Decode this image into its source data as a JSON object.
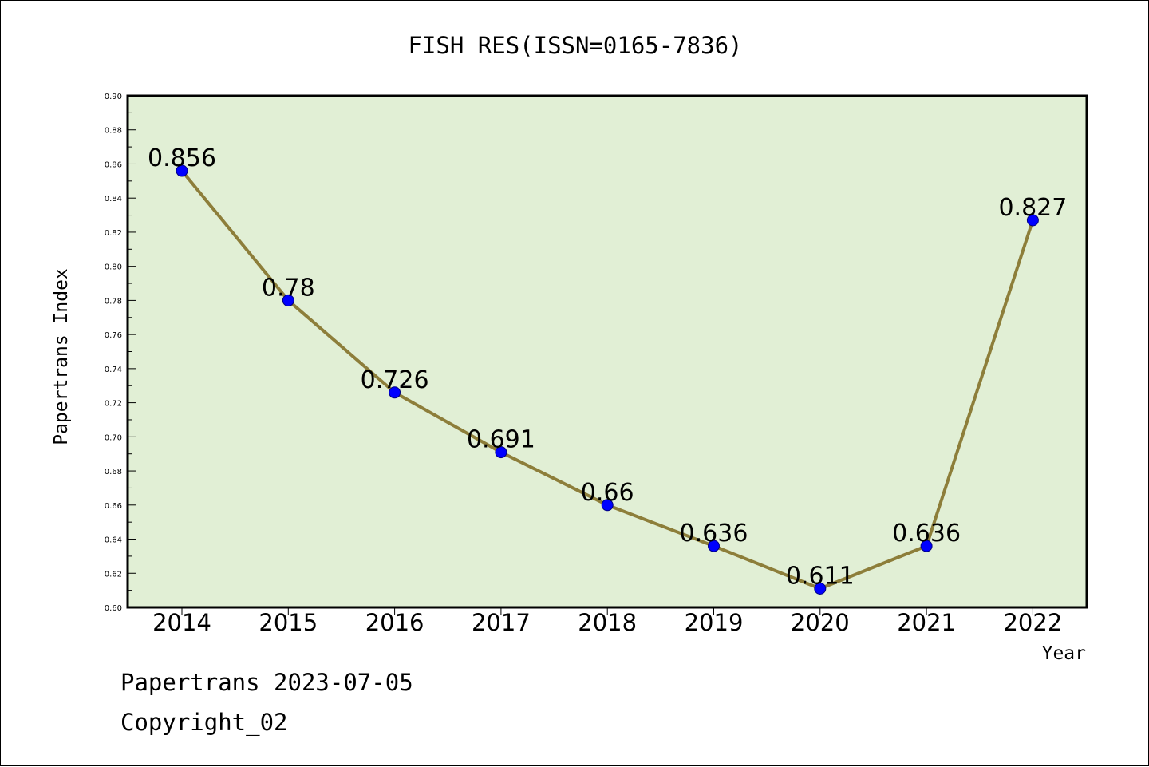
{
  "colors": {
    "plot_background": "#e1efd5",
    "line": "#8d7e3a",
    "marker": "#0000ff",
    "frame": "#000000"
  },
  "chart_data": {
    "type": "line",
    "title": "FISH RES(ISSN=0165-7836)",
    "xlabel": "Year",
    "ylabel": "Papertrans Index",
    "x": [
      "2014",
      "2015",
      "2016",
      "2017",
      "2018",
      "2019",
      "2020",
      "2021",
      "2022"
    ],
    "series": [
      {
        "values": [
          0.856,
          0.78,
          0.726,
          0.691,
          0.66,
          0.636,
          0.611,
          0.636,
          0.827
        ],
        "labels": [
          "0.856",
          "0.78",
          "0.726",
          "0.691",
          "0.66",
          "0.636",
          "0.611",
          "0.636",
          "0.827"
        ]
      }
    ],
    "ylim": [
      0.6,
      0.9
    ],
    "yticks": [
      "0.60",
      "0.62",
      "0.64",
      "0.66",
      "0.68",
      "0.70",
      "0.72",
      "0.74",
      "0.76",
      "0.78",
      "0.80",
      "0.82",
      "0.84",
      "0.86",
      "0.88",
      "0.90"
    ],
    "grid": false,
    "legend": "none"
  },
  "footer": {
    "line1": "Papertrans 2023-07-05",
    "line2": "Copyright_02"
  }
}
